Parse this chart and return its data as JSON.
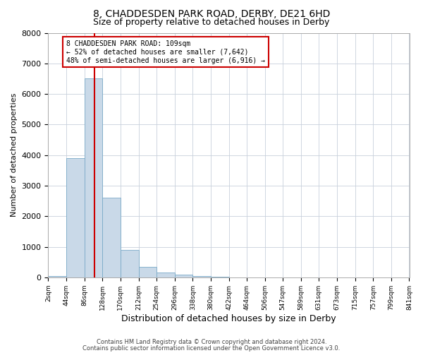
{
  "title1": "8, CHADDESDEN PARK ROAD, DERBY, DE21 6HD",
  "title2": "Size of property relative to detached houses in Derby",
  "xlabel": "Distribution of detached houses by size in Derby",
  "ylabel": "Number of detached properties",
  "bin_edges": [
    2,
    44,
    86,
    128,
    170,
    212,
    254,
    296,
    338,
    380,
    422,
    464,
    506,
    547,
    589,
    631,
    673,
    715,
    757,
    799,
    841
  ],
  "bar_heights": [
    50,
    3900,
    6500,
    2600,
    900,
    350,
    150,
    100,
    50,
    10,
    5,
    3,
    0,
    0,
    0,
    0,
    0,
    0,
    0,
    0
  ],
  "bar_color": "#c9d9e8",
  "bar_edgecolor": "#7aaac8",
  "property_size": 109,
  "vline_color": "#cc0000",
  "annotation_text": "8 CHADDESDEN PARK ROAD: 109sqm\n← 52% of detached houses are smaller (7,642)\n48% of semi-detached houses are larger (6,916) →",
  "annotation_box_color": "#ffffff",
  "annotation_box_edgecolor": "#cc0000",
  "ylim": [
    0,
    8000
  ],
  "yticks": [
    0,
    1000,
    2000,
    3000,
    4000,
    5000,
    6000,
    7000,
    8000
  ],
  "footer1": "Contains HM Land Registry data © Crown copyright and database right 2024.",
  "footer2": "Contains public sector information licensed under the Open Government Licence v3.0.",
  "bg_color": "#ffffff",
  "grid_color": "#c8d0dc",
  "title1_fontsize": 10,
  "title2_fontsize": 9,
  "annot_fontsize": 7
}
